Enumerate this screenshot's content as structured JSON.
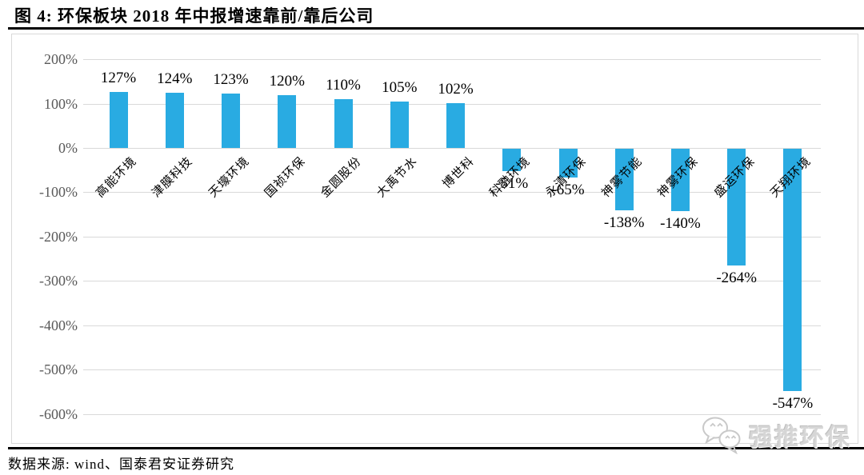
{
  "header": {
    "title": "图 4: 环保板块 2018 年中报增速靠前/靠后公司"
  },
  "footer": {
    "source": "数据来源: wind、国泰君安证券研究"
  },
  "watermark": {
    "label": "强推环保",
    "icon": "wechat-icon"
  },
  "colors": {
    "bar": "#29abe2",
    "grid": "#d9d9d9",
    "frame": "#d9d9d9",
    "axis_text": "#595959",
    "rule": "#000000",
    "value_label": "#000000",
    "watermark": "#d6d6d6"
  },
  "chart_data": {
    "type": "bar",
    "title": "环保板块2018年中报增速靠前/靠后公司",
    "categories": [
      "高能环境",
      "津膜科技",
      "天壕环境",
      "国祯环保",
      "金圆股份",
      "大禹节水",
      "博世科",
      "科融环境",
      "永清环保",
      "神雾节能",
      "神雾环保",
      "盛运环保",
      "天翔环境"
    ],
    "values": [
      127,
      124,
      123,
      120,
      110,
      105,
      102,
      -51,
      -65,
      -138,
      -140,
      -264,
      -547
    ],
    "value_labels": [
      "127%",
      "124%",
      "123%",
      "120%",
      "110%",
      "105%",
      "102%",
      "-51%",
      "-65%",
      "-138%",
      "-140%",
      "-264%",
      "-547%"
    ],
    "xlabel": "",
    "ylabel": "",
    "ylim": [
      -600,
      200
    ],
    "yticks": [
      "200%",
      "100%",
      "0%",
      "-100%",
      "-200%",
      "-300%",
      "-400%",
      "-500%",
      "-600%"
    ],
    "ytick_values": [
      200,
      100,
      0,
      -100,
      -200,
      -300,
      -400,
      -500,
      -600
    ],
    "grid": true,
    "legend_position": "none",
    "bar_color": "#29abe2",
    "label_position": "outside-end",
    "category_label_rotation_deg": 45
  }
}
